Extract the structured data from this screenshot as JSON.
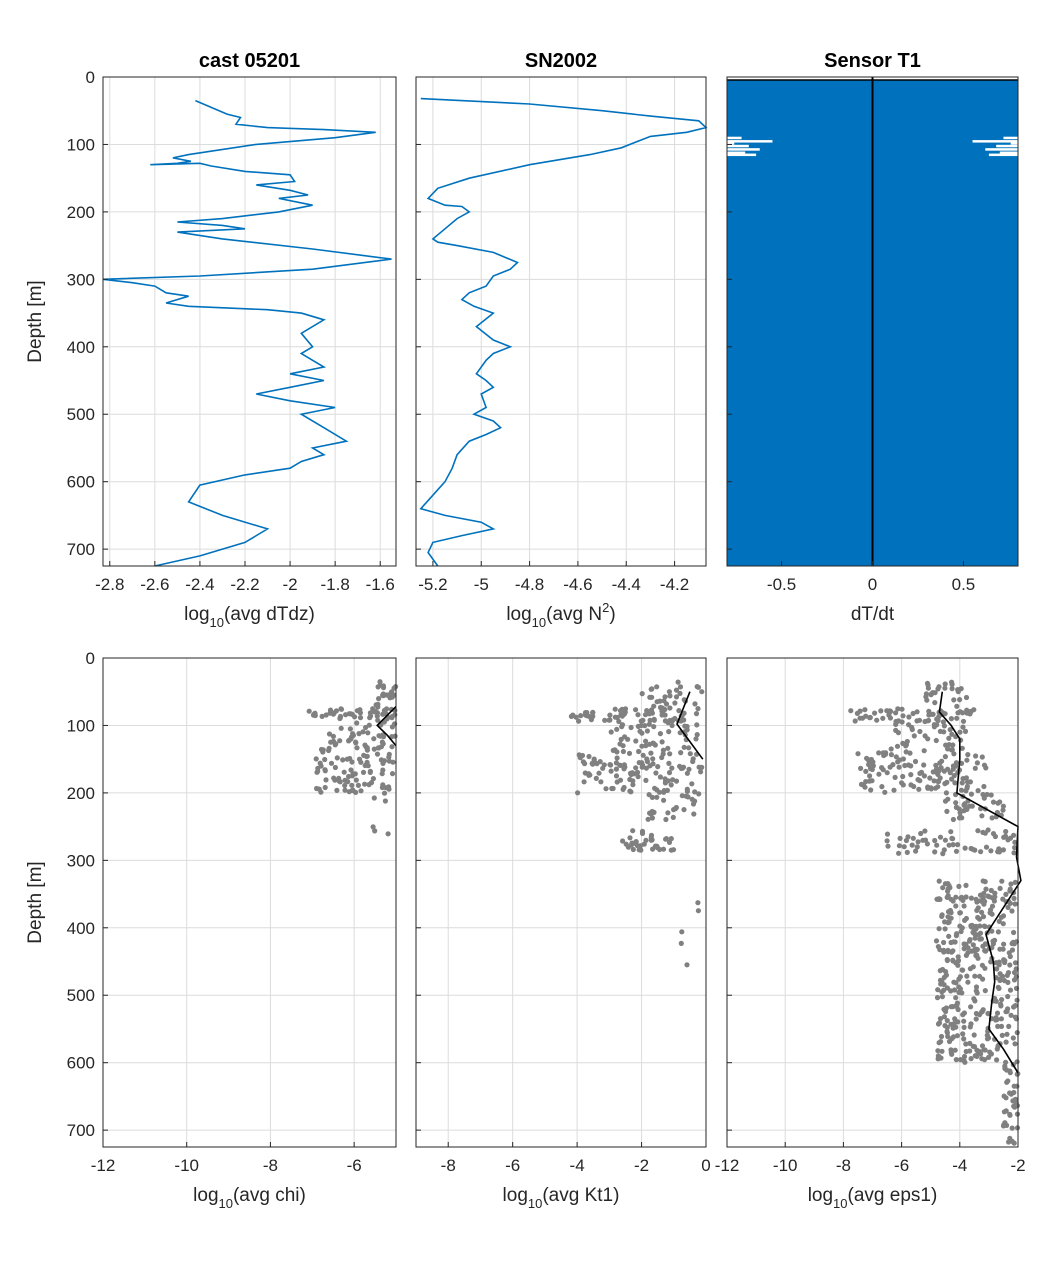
{
  "colors": {
    "profile_line": "#0072bd",
    "scatter": "#808080",
    "mean_line": "#000000",
    "fill": "#0072bd"
  },
  "chart_data": [
    {
      "id": "p1",
      "type": "line",
      "title": "cast 05201",
      "xlabel_main": "log",
      "xlabel_sub": "10",
      "xlabel_rest": "(avg dTdz)",
      "xlabel_sup": "",
      "ylabel": "Depth [m]",
      "xlim": [
        -2.83,
        -1.53
      ],
      "ylim": [
        0,
        725
      ],
      "y_reversed": true,
      "grid": true,
      "xticks": [
        -2.8,
        -2.6,
        -2.4,
        -2.2,
        -2,
        -1.8,
        -1.6
      ],
      "xtick_labels": [
        "-2.8",
        "-2.6",
        "-2.4",
        "-2.2",
        "-2",
        "-1.8",
        "-1.6"
      ],
      "yticks": [
        0,
        100,
        200,
        300,
        400,
        500,
        600,
        700
      ],
      "ytick_labels": [
        "0",
        "100",
        "200",
        "300",
        "400",
        "500",
        "600",
        "700"
      ],
      "series": [
        {
          "x": [
            -2.42,
            -2.28,
            -2.22,
            -2.24,
            -2.1,
            -1.85,
            -1.62,
            -1.8,
            -2.15,
            -2.45,
            -2.52,
            -2.44,
            -2.5,
            -2.62,
            -2.4,
            -2.35,
            -2.2,
            -2.0,
            -1.98,
            -2.15,
            -2.0,
            -1.92,
            -2.05,
            -1.9,
            -2.05,
            -2.3,
            -2.5,
            -2.3,
            -2.2,
            -2.5,
            -2.3,
            -1.9,
            -1.55,
            -1.9,
            -2.4,
            -2.83,
            -2.7,
            -2.6,
            -2.55,
            -2.45,
            -2.55,
            -2.45,
            -2.1,
            -1.95,
            -1.85,
            -1.95,
            -1.9,
            -1.95,
            -1.9,
            -1.85,
            -2.0,
            -1.85,
            -2.0,
            -2.15,
            -2.0,
            -1.8,
            -1.95,
            -1.85,
            -1.75,
            -1.9,
            -1.85,
            -1.95,
            -2.0,
            -2.2,
            -2.4,
            -2.45,
            -2.3,
            -2.1,
            -2.2,
            -2.4,
            -2.6
          ],
          "y": [
            35,
            55,
            60,
            70,
            75,
            78,
            82,
            90,
            100,
            115,
            120,
            125,
            128,
            130,
            128,
            132,
            140,
            145,
            155,
            160,
            168,
            175,
            180,
            190,
            200,
            210,
            215,
            220,
            225,
            230,
            240,
            255,
            270,
            285,
            295,
            300,
            305,
            310,
            320,
            325,
            335,
            340,
            345,
            350,
            360,
            380,
            400,
            410,
            420,
            430,
            440,
            450,
            460,
            470,
            480,
            490,
            500,
            520,
            540,
            550,
            560,
            570,
            580,
            590,
            605,
            630,
            650,
            670,
            690,
            710,
            725
          ]
        }
      ]
    },
    {
      "id": "p2",
      "type": "line",
      "title": "SN2002",
      "xlabel_main": "log",
      "xlabel_sub": "10",
      "xlabel_rest": ")",
      "xlabel_pre_sup": "(avg N",
      "xlabel_sup": "2",
      "ylabel": "",
      "xlim": [
        -5.27,
        -4.07
      ],
      "ylim": [
        0,
        725
      ],
      "y_reversed": true,
      "grid": true,
      "xticks": [
        -5.2,
        -5,
        -4.8,
        -4.6,
        -4.4,
        -4.2
      ],
      "xtick_labels": [
        "-5.2",
        "-5",
        "-4.8",
        "-4.6",
        "-4.4",
        "-4.2"
      ],
      "yticks": [
        0,
        100,
        200,
        300,
        400,
        500,
        600,
        700
      ],
      "series": [
        {
          "x": [
            -5.25,
            -4.8,
            -4.5,
            -4.3,
            -4.1,
            -4.07,
            -4.15,
            -4.3,
            -4.35,
            -4.42,
            -4.55,
            -4.8,
            -5.05,
            -5.18,
            -5.22,
            -5.15,
            -5.08,
            -5.05,
            -5.1,
            -5.15,
            -5.2,
            -5.18,
            -5.1,
            -4.95,
            -4.85,
            -4.88,
            -4.95,
            -4.98,
            -5.05,
            -5.08,
            -5.03,
            -4.95,
            -5.02,
            -4.95,
            -4.88,
            -4.95,
            -4.98,
            -5.02,
            -4.98,
            -4.95,
            -5.0,
            -4.98,
            -5.03,
            -4.95,
            -4.92,
            -4.98,
            -5.05,
            -5.1,
            -5.12,
            -5.15,
            -5.2,
            -5.25,
            -5.15,
            -5.0,
            -4.95,
            -5.08,
            -5.2,
            -5.22,
            -5.18
          ],
          "y": [
            32,
            40,
            50,
            58,
            65,
            75,
            82,
            88,
            95,
            105,
            115,
            130,
            150,
            165,
            180,
            190,
            192,
            200,
            210,
            225,
            240,
            245,
            250,
            260,
            275,
            285,
            295,
            310,
            320,
            330,
            340,
            350,
            370,
            390,
            400,
            410,
            420,
            440,
            450,
            460,
            470,
            490,
            500,
            510,
            520,
            530,
            540,
            560,
            580,
            600,
            620,
            640,
            650,
            660,
            670,
            680,
            690,
            705,
            725
          ]
        }
      ]
    },
    {
      "id": "p3",
      "type": "area",
      "title": "Sensor T1",
      "xlabel_main": "dT/dt",
      "xlabel_sub": "",
      "xlabel_rest": "",
      "xlabel_sup": "",
      "ylabel": "",
      "xlim": [
        -0.8,
        0.8
      ],
      "ylim": [
        0,
        725
      ],
      "y_reversed": true,
      "grid": false,
      "xticks": [
        -0.5,
        0,
        0.5
      ],
      "xtick_labels": [
        "-0.5",
        "0",
        "0.5"
      ],
      "yticks": [
        0,
        100,
        200,
        300,
        400,
        500,
        600,
        700
      ],
      "fill_range": [
        5,
        725
      ],
      "center_line_x": 0,
      "gaps": [
        {
          "d": 12,
          "w": 0.8
        },
        {
          "d": 90,
          "w": 0.72
        },
        {
          "d": 95,
          "w": 0.55
        },
        {
          "d": 98,
          "w": 0.76
        },
        {
          "d": 102,
          "w": 0.68
        },
        {
          "d": 107,
          "w": 0.62
        },
        {
          "d": 112,
          "w": 0.7
        },
        {
          "d": 115,
          "w": 0.64
        }
      ]
    },
    {
      "id": "p4",
      "type": "scatter",
      "title": "",
      "xlabel_main": "log",
      "xlabel_sub": "10",
      "xlabel_rest": "(avg chi)",
      "xlabel_sup": "",
      "ylabel": "Depth [m]",
      "xlim": [
        -12,
        -5
      ],
      "ylim": [
        0,
        725
      ],
      "y_reversed": true,
      "grid": true,
      "xticks": [
        -12,
        -10,
        -8,
        -6
      ],
      "xtick_labels": [
        "-12",
        "-10",
        "-8",
        "-6"
      ],
      "yticks": [
        0,
        100,
        200,
        300,
        400,
        500,
        600,
        700
      ],
      "ytick_labels": [
        "0",
        "100",
        "200",
        "300",
        "400",
        "500",
        "600",
        "700"
      ],
      "clusters": [
        {
          "y": [
            35,
            75
          ],
          "x": [
            -5.5,
            -5.0
          ],
          "n": 20
        },
        {
          "y": [
            75,
            90
          ],
          "x": [
            -7.1,
            -5.0
          ],
          "n": 45
        },
        {
          "y": [
            90,
            130
          ],
          "x": [
            -6.6,
            -5.0
          ],
          "n": 40
        },
        {
          "y": [
            130,
            200
          ],
          "x": [
            -7.0,
            -5.0
          ],
          "n": 90
        },
        {
          "y": [
            200,
            270
          ],
          "x": [
            -5.6,
            -5.0
          ],
          "n": 6
        }
      ],
      "mean_line": {
        "x": [
          -5.0,
          -5.45,
          -5.2,
          -5.0
        ],
        "y": [
          72,
          100,
          115,
          130
        ]
      }
    },
    {
      "id": "p5",
      "type": "scatter",
      "title": "",
      "xlabel_main": "log",
      "xlabel_sub": "10",
      "xlabel_rest": "(avg Kt1)",
      "xlabel_sup": "",
      "ylabel": "",
      "xlim": [
        -9,
        0
      ],
      "ylim": [
        0,
        725
      ],
      "y_reversed": true,
      "grid": true,
      "xticks": [
        -8,
        -6,
        -4,
        -2,
        0
      ],
      "xtick_labels": [
        "-8",
        "-6",
        "-4",
        "-2",
        "0"
      ],
      "yticks": [
        0,
        100,
        200,
        300,
        400,
        500,
        600,
        700
      ],
      "clusters": [
        {
          "y": [
            35,
            75
          ],
          "x": [
            -2.0,
            -0.1
          ],
          "n": 30
        },
        {
          "y": [
            75,
            95
          ],
          "x": [
            -4.2,
            -0.1
          ],
          "n": 60
        },
        {
          "y": [
            95,
            140
          ],
          "x": [
            -3.0,
            -0.2
          ],
          "n": 50
        },
        {
          "y": [
            140,
            200
          ],
          "x": [
            -4.0,
            -0.1
          ],
          "n": 110
        },
        {
          "y": [
            200,
            240
          ],
          "x": [
            -1.8,
            -0.1
          ],
          "n": 25
        },
        {
          "y": [
            255,
            285
          ],
          "x": [
            -2.6,
            -1.0
          ],
          "n": 35
        },
        {
          "y": [
            360,
            550
          ],
          "x": [
            -1.5,
            -0.1
          ],
          "n": 5
        }
      ],
      "mean_line": {
        "x": [
          -0.5,
          -0.9,
          -0.1
        ],
        "y": [
          50,
          98,
          150
        ]
      }
    },
    {
      "id": "p6",
      "type": "scatter",
      "title": "",
      "xlabel_main": "log",
      "xlabel_sub": "10",
      "xlabel_rest": "(avg eps1)",
      "xlabel_sup": "",
      "ylabel": "",
      "xlim": [
        -12,
        -2
      ],
      "ylim": [
        0,
        725
      ],
      "y_reversed": true,
      "grid": true,
      "xticks": [
        -12,
        -10,
        -8,
        -6,
        -4,
        -2
      ],
      "xtick_labels": [
        "-12",
        "-10",
        "-8",
        "-6",
        "-4",
        "-2"
      ],
      "yticks": [
        0,
        100,
        200,
        300,
        400,
        500,
        600,
        700
      ],
      "clusters": [
        {
          "y": [
            35,
            75
          ],
          "x": [
            -5.2,
            -3.5
          ],
          "n": 25
        },
        {
          "y": [
            75,
            95
          ],
          "x": [
            -7.8,
            -3.5
          ],
          "n": 60
        },
        {
          "y": [
            95,
            140
          ],
          "x": [
            -6.5,
            -3.8
          ],
          "n": 40
        },
        {
          "y": [
            140,
            200
          ],
          "x": [
            -7.5,
            -3.0
          ],
          "n": 120
        },
        {
          "y": [
            200,
            240
          ],
          "x": [
            -4.5,
            -2.5
          ],
          "n": 40
        },
        {
          "y": [
            255,
            290
          ],
          "x": [
            -6.5,
            -2.0
          ],
          "n": 60
        },
        {
          "y": [
            330,
            600
          ],
          "x": [
            -4.8,
            -2.0
          ],
          "n": 380
        },
        {
          "y": [
            600,
            720
          ],
          "x": [
            -2.5,
            -2.0
          ],
          "n": 40
        }
      ],
      "mean_line": {
        "x": [
          -4.6,
          -4.7,
          -4.3,
          -4.0,
          -4.0,
          -4.1,
          -2.0,
          -2.05,
          -1.9,
          -3.1,
          -2.85,
          -2.8,
          -2.9,
          -3.0,
          -2.5,
          -2.0
        ],
        "y": [
          50,
          80,
          100,
          120,
          150,
          200,
          250,
          295,
          330,
          410,
          450,
          480,
          510,
          550,
          580,
          615
        ]
      }
    }
  ]
}
